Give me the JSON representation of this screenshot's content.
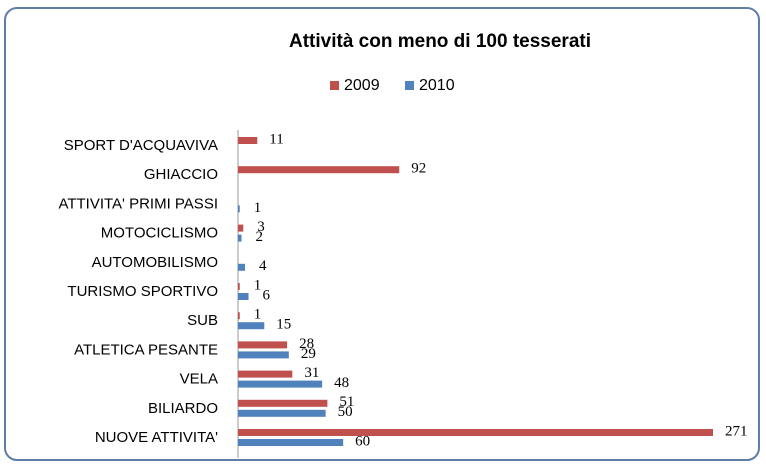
{
  "chart_data": {
    "type": "barh",
    "title": "Attività con meno di 100 tesserati",
    "categories": [
      "SPORT D'ACQUAVIVA",
      "GHIACCIO",
      "ATTIVITA' PRIMI PASSI",
      "MOTOCICLISMO",
      "AUTOMOBILISMO",
      "TURISMO SPORTIVO",
      "SUB",
      "ATLETICA PESANTE",
      "VELA",
      "BILIARDO",
      "NUOVE ATTIVITA'"
    ],
    "series": [
      {
        "name": "2009",
        "color": "#c0504d",
        "values": [
          11,
          92,
          null,
          3,
          null,
          1,
          1,
          28,
          31,
          51,
          271
        ]
      },
      {
        "name": "2010",
        "color": "#4f81bd",
        "values": [
          null,
          null,
          1,
          2,
          4,
          6,
          15,
          29,
          48,
          50,
          60
        ]
      }
    ],
    "legend": "top"
  }
}
